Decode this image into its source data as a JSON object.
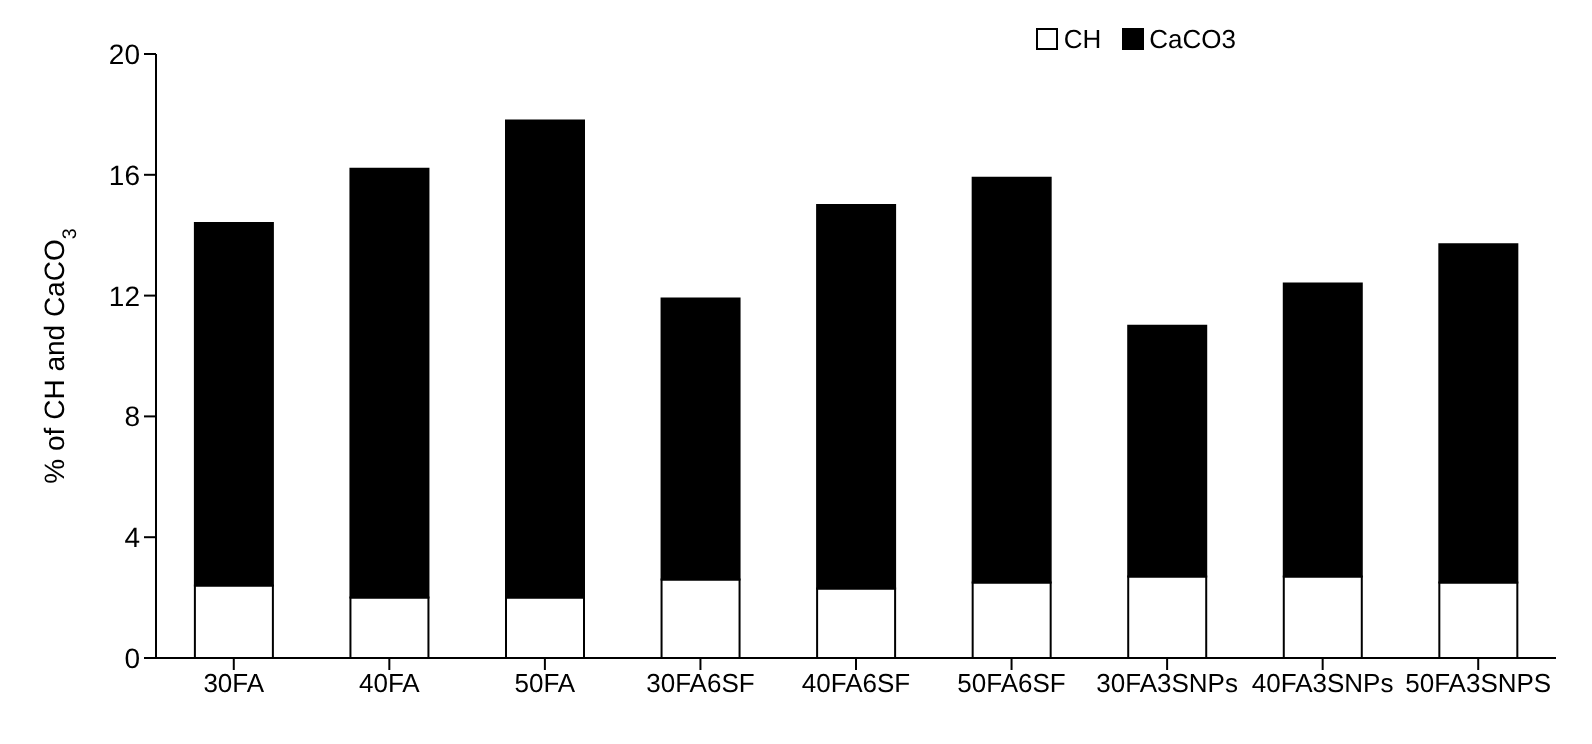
{
  "chart_data": {
    "type": "bar",
    "stacked": true,
    "ylabel": "% of CH and CaCO$_{3}$",
    "categories": [
      "30FA",
      "40FA",
      "50FA",
      "30FA6SF",
      "40FA6SF",
      "50FA6SF",
      "30FA3SNPs",
      "40FA3SNPs",
      "50FA3SNPS"
    ],
    "series": [
      {
        "name": "CH",
        "color": "#ffffff",
        "values": [
          2.4,
          2.0,
          2.0,
          2.6,
          2.3,
          2.5,
          2.7,
          2.7,
          2.5
        ]
      },
      {
        "name": "CaCO3",
        "color": "#000000",
        "values": [
          12.0,
          14.2,
          15.8,
          9.3,
          12.7,
          13.4,
          8.3,
          9.7,
          11.2
        ]
      }
    ],
    "ylim": [
      0,
      20
    ],
    "yticks": [
      0,
      4,
      8,
      12,
      16,
      20
    ],
    "grid": false,
    "legend": "top right"
  }
}
